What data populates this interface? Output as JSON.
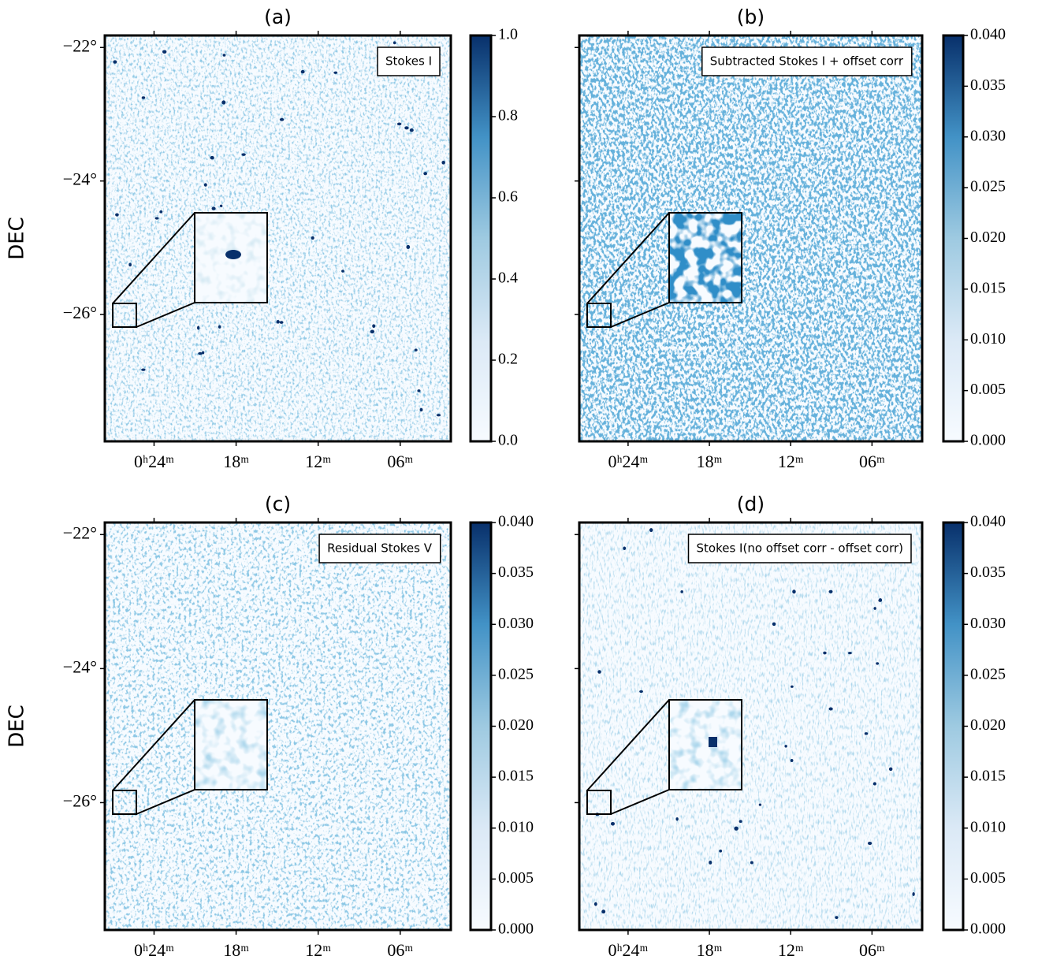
{
  "chart_data": [
    {
      "type": "image",
      "title": "(a)",
      "legend": "Stokes I",
      "ylabel": "DEC",
      "xlim": [
        27.6,
        2.3
      ],
      "xticks": [
        {
          "value": 24,
          "label": "0ʰ24ᵐ"
        },
        {
          "value": 18,
          "label": "18ᵐ"
        },
        {
          "value": 12,
          "label": "12ᵐ"
        },
        {
          "value": 6,
          "label": "06ᵐ"
        }
      ],
      "ylim": [
        -27.9,
        -21.82
      ],
      "yticks": [
        {
          "value": -22,
          "label": "−22°"
        },
        {
          "value": -24,
          "label": "−24°"
        },
        {
          "value": -26,
          "label": "−26°"
        }
      ],
      "colorbar": {
        "cmap": "Blues",
        "lim": [
          0,
          1
        ],
        "ticks": [
          {
            "value": 0,
            "label": "0.0"
          },
          {
            "value": 0.2,
            "label": "0.2"
          },
          {
            "value": 0.4,
            "label": "0.4"
          },
          {
            "value": 0.6,
            "label": "0.6"
          },
          {
            "value": 0.8,
            "label": "0.8"
          },
          {
            "value": 1,
            "label": "1.0"
          }
        ]
      }
    },
    {
      "type": "image",
      "title": "(b)",
      "legend": "Subtracted Stokes I + offset corr",
      "xlim": [
        27.6,
        2.3
      ],
      "xticks": [
        {
          "value": 24,
          "label": "0ʰ24ᵐ"
        },
        {
          "value": 18,
          "label": "18ᵐ"
        },
        {
          "value": 12,
          "label": "12ᵐ"
        },
        {
          "value": 6,
          "label": "06ᵐ"
        }
      ],
      "ylim": [
        -27.9,
        -21.82
      ],
      "yticks": [
        -22,
        -24,
        -26
      ],
      "colorbar": {
        "cmap": "Blues",
        "lim": [
          0,
          0.04
        ],
        "ticks": [
          {
            "value": 0,
            "label": "0.000"
          },
          {
            "value": 0.005,
            "label": "0.005"
          },
          {
            "value": 0.01,
            "label": "0.010"
          },
          {
            "value": 0.015,
            "label": "0.015"
          },
          {
            "value": 0.02,
            "label": "0.020"
          },
          {
            "value": 0.025,
            "label": "0.025"
          },
          {
            "value": 0.03,
            "label": "0.030"
          },
          {
            "value": 0.035,
            "label": "0.035"
          },
          {
            "value": 0.04,
            "label": "0.040"
          }
        ]
      }
    },
    {
      "type": "image",
      "title": "(c)",
      "legend": "Residual Stokes V",
      "ylabel": "DEC",
      "xlim": [
        27.6,
        2.3
      ],
      "xticks": [
        {
          "value": 24,
          "label": "0ʰ24ᵐ"
        },
        {
          "value": 18,
          "label": "18ᵐ"
        },
        {
          "value": 12,
          "label": "12ᵐ"
        },
        {
          "value": 6,
          "label": "06ᵐ"
        }
      ],
      "ylim": [
        -27.9,
        -21.82
      ],
      "yticks": [
        {
          "value": -22,
          "label": "−22°"
        },
        {
          "value": -24,
          "label": "−24°"
        },
        {
          "value": -26,
          "label": "−26°"
        }
      ],
      "colorbar": {
        "cmap": "Blues",
        "lim": [
          0,
          0.04
        ],
        "ticks": [
          {
            "value": 0,
            "label": "0.000"
          },
          {
            "value": 0.005,
            "label": "0.005"
          },
          {
            "value": 0.01,
            "label": "0.010"
          },
          {
            "value": 0.015,
            "label": "0.015"
          },
          {
            "value": 0.02,
            "label": "0.020"
          },
          {
            "value": 0.025,
            "label": "0.025"
          },
          {
            "value": 0.03,
            "label": "0.030"
          },
          {
            "value": 0.035,
            "label": "0.035"
          },
          {
            "value": 0.04,
            "label": "0.040"
          }
        ]
      }
    },
    {
      "type": "image",
      "title": "(d)",
      "legend": "Stokes I(no offset corr - offset corr)",
      "xlim": [
        27.6,
        2.3
      ],
      "xticks": [
        {
          "value": 24,
          "label": "0ʰ24ᵐ"
        },
        {
          "value": 18,
          "label": "18ᵐ"
        },
        {
          "value": 12,
          "label": "12ᵐ"
        },
        {
          "value": 6,
          "label": "06ᵐ"
        }
      ],
      "ylim": [
        -27.9,
        -21.82
      ],
      "yticks": [
        -22,
        -24,
        -26
      ],
      "colorbar": {
        "cmap": "Blues",
        "lim": [
          0,
          0.04
        ],
        "ticks": [
          {
            "value": 0,
            "label": "0.000"
          },
          {
            "value": 0.005,
            "label": "0.005"
          },
          {
            "value": 0.01,
            "label": "0.010"
          },
          {
            "value": 0.015,
            "label": "0.015"
          },
          {
            "value": 0.02,
            "label": "0.020"
          },
          {
            "value": 0.025,
            "label": "0.025"
          },
          {
            "value": 0.03,
            "label": "0.030"
          },
          {
            "value": 0.035,
            "label": "0.035"
          },
          {
            "value": 0.04,
            "label": "0.040"
          }
        ]
      }
    }
  ]
}
